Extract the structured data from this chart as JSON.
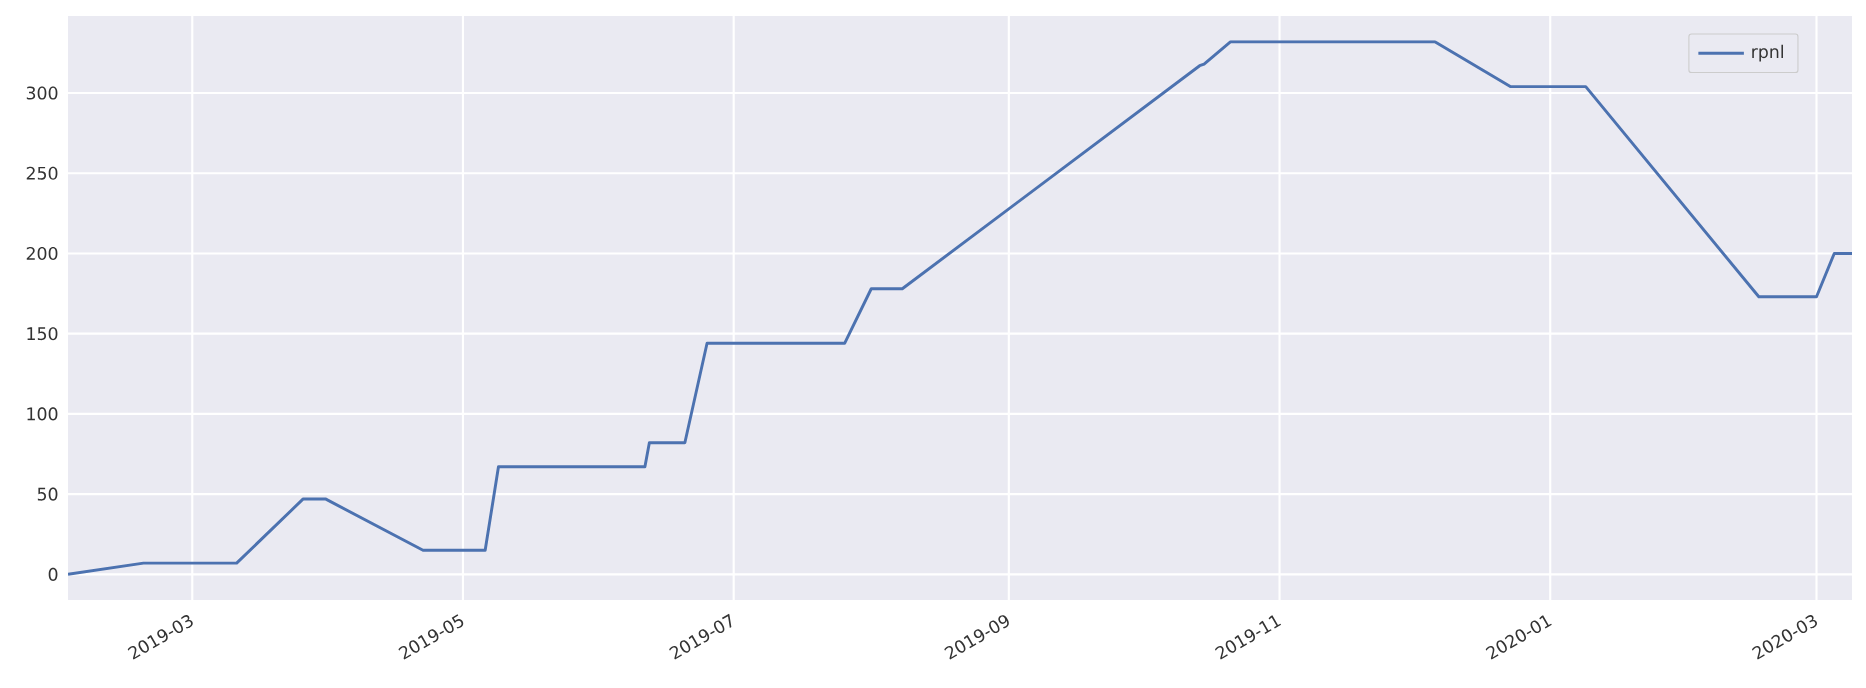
{
  "chart_data": {
    "type": "line",
    "x": [
      "2019-02-01",
      "2019-02-18",
      "2019-03-11",
      "2019-03-26",
      "2019-03-31",
      "2019-04-22",
      "2019-05-06",
      "2019-05-09",
      "2019-06-11",
      "2019-06-12",
      "2019-06-20",
      "2019-06-25",
      "2019-07-26",
      "2019-08-01",
      "2019-08-08",
      "2019-10-14",
      "2019-10-15",
      "2019-10-21",
      "2019-12-06",
      "2019-12-23",
      "2020-01-09",
      "2020-02-17",
      "2020-03-01",
      "2020-03-05",
      "2020-03-09"
    ],
    "series": [
      {
        "name": "rpnl",
        "color": "#4c72b0",
        "values": [
          0,
          7,
          7,
          47,
          47,
          15,
          15,
          67,
          67,
          82,
          82,
          144,
          144,
          178,
          178,
          317,
          318,
          332,
          332,
          304,
          304,
          173,
          173,
          200,
          200
        ]
      }
    ],
    "xlim": [
      "2019-02-01",
      "2020-03-09"
    ],
    "xticks": [
      "2019-03",
      "2019-05",
      "2019-07",
      "2019-09",
      "2019-11",
      "2020-01",
      "2020-03"
    ],
    "ylim": [
      -16,
      348
    ],
    "yticks": [
      0,
      50,
      100,
      150,
      200,
      250,
      300
    ],
    "grid": true,
    "legend": "top right"
  }
}
